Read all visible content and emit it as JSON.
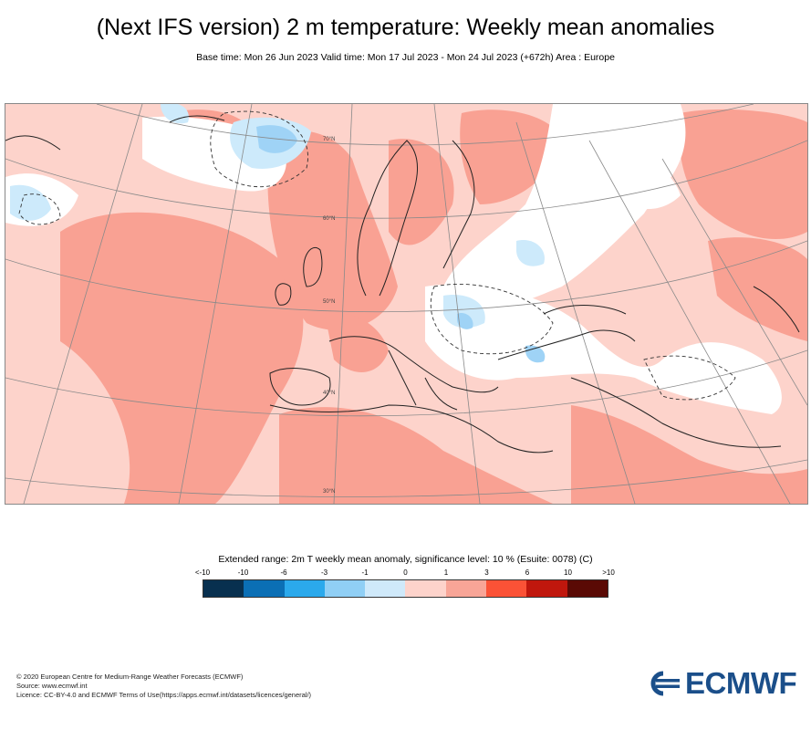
{
  "header": {
    "title": "(Next IFS version) 2 m temperature: Weekly mean anomalies",
    "subtitle": "Base time: Mon 26 Jun 2023 Valid time: Mon 17 Jul 2023 - Mon 24 Jul 2023 (+672h) Area : Europe"
  },
  "map": {
    "lat_labels": [
      "70°N",
      "60°N",
      "50°N",
      "40°N",
      "30°N"
    ],
    "colors": {
      "very_warm": "#f9a193",
      "warm": "#fdd3cb",
      "neutral": "#ffffff",
      "cool": "#cdeafb",
      "cold": "#9fd3f6",
      "coast": "#222222",
      "grid": "#8a8a8a"
    }
  },
  "legend": {
    "title": "Extended range: 2m T weekly mean anomaly, significance level: 10 % (Esuite: 0078) (C)",
    "labels": [
      "<-10",
      "-10",
      "-6",
      "-3",
      "-1",
      "0",
      "1",
      "3",
      "6",
      "10",
      ">10"
    ],
    "colors": [
      "#08304f",
      "#0b6fb5",
      "#2ba9ec",
      "#90cff5",
      "#cfe9fa",
      "#fdd3cb",
      "#f8a597",
      "#fb5236",
      "#c0170d",
      "#5a0a05"
    ]
  },
  "footer": {
    "line1": "© 2020 European Centre for Medium-Range Weather Forecasts (ECMWF)",
    "line2": "Source: www.ecmwf.int",
    "line3": "Licence: CC-BY-4.0 and ECMWF Terms of Use(https://apps.ecmwf.int/datasets/licences/general/)"
  },
  "logo": {
    "text": "ECMWF"
  }
}
